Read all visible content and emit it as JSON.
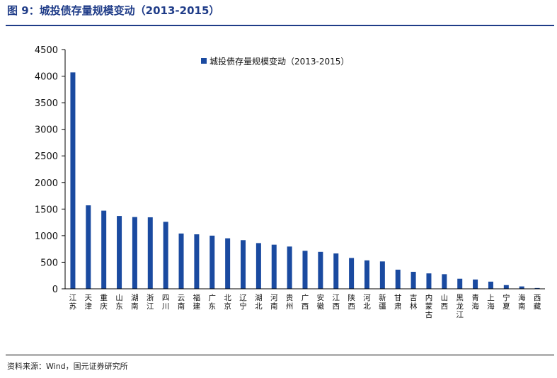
{
  "header": {
    "title": "图 9：城投债存量规模变动（2013-2015）"
  },
  "footer": {
    "source": "资料来源：Wind，国元证券研究所"
  },
  "colors": {
    "bar": "#1a4aa0",
    "accent": "#1f3c88"
  },
  "chart_data": {
    "type": "bar",
    "title": "",
    "xlabel": "",
    "ylabel": "",
    "ylim": [
      0,
      4500
    ],
    "yticks": [
      0,
      500,
      1000,
      1500,
      2000,
      2500,
      3000,
      3500,
      4000,
      4500
    ],
    "grid": false,
    "legend_position": "top-center",
    "categories": [
      "江苏",
      "天津",
      "重庆",
      "山东",
      "湖南",
      "浙江",
      "四川",
      "云南",
      "福建",
      "广东",
      "北京",
      "辽宁",
      "湖北",
      "河南",
      "贵州",
      "广西",
      "安徽",
      "江西",
      "陕西",
      "河北",
      "新疆",
      "甘肃",
      "吉林",
      "内蒙古",
      "山西",
      "黑龙江",
      "青海",
      "上海",
      "宁夏",
      "海南",
      "西藏"
    ],
    "series": [
      {
        "name": "城投债存量规模变动（2013-2015）",
        "values": [
          4070,
          1570,
          1470,
          1370,
          1350,
          1345,
          1260,
          1040,
          1025,
          1000,
          950,
          915,
          860,
          830,
          795,
          715,
          695,
          665,
          580,
          535,
          515,
          360,
          320,
          290,
          275,
          190,
          175,
          135,
          70,
          45,
          15
        ]
      }
    ]
  }
}
